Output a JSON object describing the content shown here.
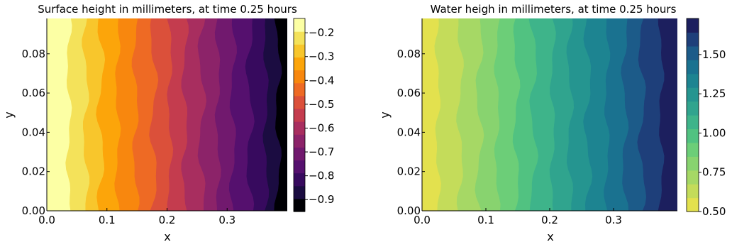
{
  "chart_data": [
    {
      "type": "heatmap",
      "subtype": "filled-contour",
      "title": "Surface height in millimeters, at time 0.25 hours",
      "xlabel": "x",
      "ylabel": "y",
      "xlim": [
        0,
        0.4
      ],
      "ylim": [
        0,
        0.098
      ],
      "x_ticks": [
        0.0,
        0.1,
        0.2,
        0.3
      ],
      "x_tick_labels": [
        "0.0",
        "0.1",
        "0.2",
        "0.3"
      ],
      "y_ticks": [
        0.0,
        0.02,
        0.04,
        0.06,
        0.08
      ],
      "y_tick_labels": [
        "0.00",
        "0.02",
        "0.04",
        "0.06",
        "0.08"
      ],
      "colormap": "inferno",
      "colorbar_range": [
        -0.95,
        -0.14
      ],
      "colorbar_ticks": [
        -0.2,
        -0.3,
        -0.4,
        -0.5,
        -0.6,
        -0.7,
        -0.8,
        -0.9
      ],
      "colorbar_tick_labels": [
        "−0.2",
        "−0.3",
        "−0.4",
        "−0.5",
        "−0.6",
        "−0.7",
        "−0.8",
        "−0.9"
      ],
      "level_boundaries_x": [
        0.037,
        0.065,
        0.09,
        0.118,
        0.148,
        0.178,
        0.205,
        0.23,
        0.258,
        0.285,
        0.31,
        0.338,
        0.365,
        0.385
      ],
      "bands": [
        {
          "value": -0.15,
          "color": "#fcffa4"
        },
        {
          "value": -0.2,
          "color": "#f4e25a"
        },
        {
          "value": -0.25,
          "color": "#f8c62c"
        },
        {
          "value": -0.3,
          "color": "#fca50a"
        },
        {
          "value": -0.35,
          "color": "#f8870e"
        },
        {
          "value": -0.4,
          "color": "#ee6a24"
        },
        {
          "value": -0.45,
          "color": "#db503a"
        },
        {
          "value": -0.5,
          "color": "#c43c4e"
        },
        {
          "value": -0.55,
          "color": "#a82e5f"
        },
        {
          "value": -0.6,
          "color": "#8c2369"
        },
        {
          "value": -0.65,
          "color": "#71196e"
        },
        {
          "value": -0.7,
          "color": "#55106e"
        },
        {
          "value": -0.75,
          "color": "#370a5e"
        },
        {
          "value": -0.8,
          "color": "#1b0c41"
        },
        {
          "value": -0.88,
          "color": "#000004"
        }
      ]
    },
    {
      "type": "heatmap",
      "subtype": "filled-contour",
      "title": "Water heigh in millimeters, at time 0.25 hours",
      "xlabel": "x",
      "ylabel": "y",
      "xlim": [
        0,
        0.4
      ],
      "ylim": [
        0,
        0.098
      ],
      "x_ticks": [
        0.0,
        0.1,
        0.2,
        0.3
      ],
      "x_tick_labels": [
        "0.0",
        "0.1",
        "0.2",
        "0.3"
      ],
      "y_ticks": [
        0.0,
        0.02,
        0.04,
        0.06,
        0.08
      ],
      "y_tick_labels": [
        "0.00",
        "0.02",
        "0.04",
        "0.06",
        "0.08"
      ],
      "colormap": "viridis-like (yellow to navy)",
      "colorbar_range": [
        0.5,
        1.73
      ],
      "colorbar_ticks": [
        0.5,
        0.75,
        1.0,
        1.25,
        1.5
      ],
      "colorbar_tick_labels": [
        "0.50",
        "0.75",
        "1.00",
        "1.25",
        "1.50"
      ],
      "level_boundaries_x": [
        0.025,
        0.06,
        0.09,
        0.118,
        0.148,
        0.175,
        0.205,
        0.232,
        0.26,
        0.29,
        0.318,
        0.345,
        0.375
      ],
      "bands": [
        {
          "value": 0.55,
          "color": "#e3e14e"
        },
        {
          "value": 0.65,
          "color": "#c4dc5a"
        },
        {
          "value": 0.75,
          "color": "#a6d865"
        },
        {
          "value": 0.85,
          "color": "#88d36f"
        },
        {
          "value": 0.95,
          "color": "#6cce78"
        },
        {
          "value": 1.05,
          "color": "#51c281"
        },
        {
          "value": 1.15,
          "color": "#3eb48a"
        },
        {
          "value": 1.25,
          "color": "#30a48e"
        },
        {
          "value": 1.35,
          "color": "#259590"
        },
        {
          "value": 1.45,
          "color": "#1d8491"
        },
        {
          "value": 1.55,
          "color": "#1a7290"
        },
        {
          "value": 1.62,
          "color": "#1c5b89"
        },
        {
          "value": 1.68,
          "color": "#1e3f7a"
        },
        {
          "value": 1.72,
          "color": "#1c1f5e"
        }
      ]
    }
  ]
}
